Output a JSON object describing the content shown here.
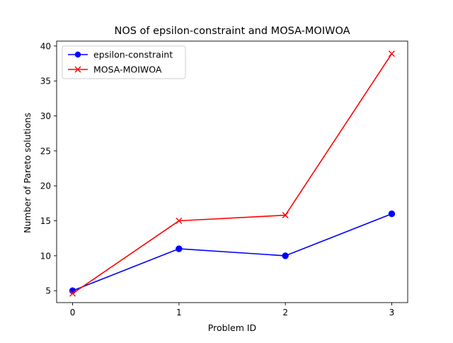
{
  "chart_data": {
    "type": "line",
    "title": "NOS of epsilon-constraint and MOSA-MOIWOA",
    "xlabel": "Problem ID",
    "ylabel": "Number of Pareto solutions",
    "x": [
      0,
      1,
      2,
      3
    ],
    "xlim": [
      -0.15,
      3.15
    ],
    "ylim": [
      3.3,
      40.7
    ],
    "xticks": [
      "0",
      "1",
      "2",
      "3"
    ],
    "yticks": [
      "5",
      "10",
      "15",
      "20",
      "25",
      "30",
      "35",
      "40"
    ],
    "grid": false,
    "legend_position": "upper left",
    "series": [
      {
        "name": "epsilon-constraint",
        "values": [
          5,
          11,
          10,
          16
        ],
        "color": "#0000ff",
        "marker": "circle"
      },
      {
        "name": "MOSA-MOIWOA",
        "values": [
          4.6,
          15,
          15.8,
          38.9
        ],
        "color": "#ff0000",
        "marker": "x"
      }
    ]
  }
}
